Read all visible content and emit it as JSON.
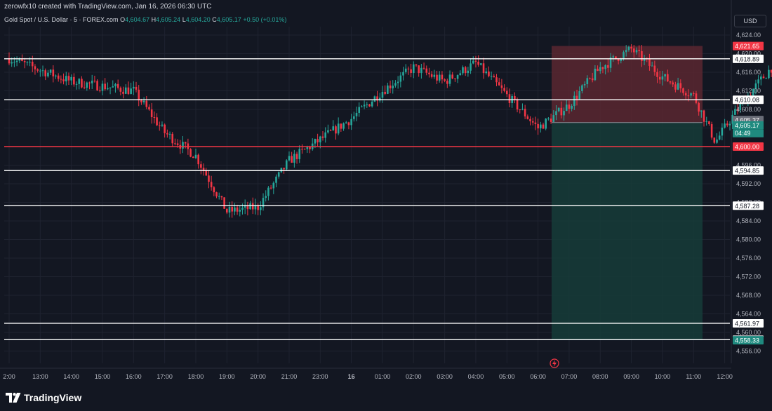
{
  "header": {
    "credit": "zerowfx10 created with TradingView.com, Jan 16, 2026 06:30 UTC",
    "symbol": "Gold Spot / U.S. Dollar · 5 · FOREX.com",
    "open_label": "O",
    "open": "4,604.67",
    "high_label": "H",
    "high": "4,605.24",
    "low_label": "L",
    "low": "4,604.20",
    "close_label": "C",
    "close": "4,605.17",
    "change": "+0.50 (+0.01%)"
  },
  "currency_button": "USD",
  "footer": {
    "brand": "TradingView"
  },
  "colors": {
    "background": "#131722",
    "up": "#26a69a",
    "down": "#f23645",
    "line": "#ffffff",
    "support_line": "#f23645",
    "stop_zone": "#5b2730",
    "target_zone": "#163c38"
  },
  "chart_data": {
    "type": "candlestick",
    "instrument": "Gold Spot / U.S. Dollar",
    "timeframe": "5",
    "source": "FOREX.com",
    "x_ticks": [
      "2:00",
      "13:00",
      "14:00",
      "15:00",
      "16:00",
      "17:00",
      "18:00",
      "19:00",
      "20:00",
      "21:00",
      "23:00",
      "16",
      "01:00",
      "02:00",
      "03:00",
      "04:00",
      "05:00",
      "06:00",
      "07:00",
      "08:00",
      "09:00",
      "10:00",
      "11:00",
      "12:00"
    ],
    "y_ticks": [
      "4,624.00",
      "4,620.00",
      "4,616.00",
      "4,612.00",
      "4,608.00",
      "4,596.00",
      "4,592.00",
      "4,588.00",
      "4,584.00",
      "4,580.00",
      "4,576.00",
      "4,572.00",
      "4,568.00",
      "4,564.00",
      "4,560.00",
      "4,556.00"
    ],
    "y_range": [
      4554,
      4628
    ],
    "horizontal_levels": [
      {
        "value": 4618.89,
        "label": "4,618.89",
        "color": "#ffffff"
      },
      {
        "value": 4610.08,
        "label": "4,610.08",
        "color": "#ffffff"
      },
      {
        "value": 4600.0,
        "label": "4,600.00",
        "color": "#f23645"
      },
      {
        "value": 4594.85,
        "label": "4,594.85",
        "color": "#ffffff"
      },
      {
        "value": 4587.28,
        "label": "4,587.28",
        "color": "#ffffff"
      },
      {
        "value": 4561.97,
        "label": "4,561.97",
        "color": "#ffffff"
      },
      {
        "value": 4558.44,
        "label": "4,558.44",
        "color": "#ffffff"
      }
    ],
    "position": {
      "type": "short",
      "entry": 4605.17,
      "stop": 4621.65,
      "stop_label": "4,621.65",
      "target": 4558.33,
      "target_label": "4,558.33"
    },
    "price_markers": [
      {
        "value": 4605.37,
        "label": "4,605.37",
        "kind": "bid"
      },
      {
        "value": 4605.17,
        "label": "4,605.17",
        "kind": "last",
        "countdown": "04:49"
      }
    ],
    "anchors": [
      {
        "t": 0,
        "v": 4619
      },
      {
        "t": 2,
        "v": 4614
      },
      {
        "t": 4,
        "v": 4612
      },
      {
        "t": 5,
        "v": 4603
      },
      {
        "t": 6,
        "v": 4598
      },
      {
        "t": 7,
        "v": 4586
      },
      {
        "t": 8,
        "v": 4587
      },
      {
        "t": 9,
        "v": 4597
      },
      {
        "t": 11,
        "v": 4606
      },
      {
        "t": 12,
        "v": 4612
      },
      {
        "t": 13,
        "v": 4617
      },
      {
        "t": 14,
        "v": 4614
      },
      {
        "t": 15,
        "v": 4618
      },
      {
        "t": 16,
        "v": 4611
      },
      {
        "t": 17,
        "v": 4604
      },
      {
        "t": 18,
        "v": 4609
      },
      {
        "t": 19,
        "v": 4617
      },
      {
        "t": 20,
        "v": 4621
      },
      {
        "t": 21,
        "v": 4615
      },
      {
        "t": 22,
        "v": 4611
      },
      {
        "t": 22.7,
        "v": 4601
      },
      {
        "t": 23.5,
        "v": 4609
      },
      {
        "t": 24.5,
        "v": 4617
      },
      {
        "t": 25.2,
        "v": 4619
      },
      {
        "t": 26,
        "v": 4615
      },
      {
        "t": 27,
        "v": 4609
      },
      {
        "t": 28,
        "v": 4608
      },
      {
        "t": 29,
        "v": 4604
      },
      {
        "t": 30,
        "v": 4600
      },
      {
        "t": 31,
        "v": 4603
      },
      {
        "t": 32,
        "v": 4601
      },
      {
        "t": 33,
        "v": 4602
      },
      {
        "t": 34,
        "v": 4598
      },
      {
        "t": 35,
        "v": 4595
      },
      {
        "t": 36,
        "v": 4597
      },
      {
        "t": 37,
        "v": 4595
      },
      {
        "t": 38,
        "v": 4597
      },
      {
        "t": 39,
        "v": 4598
      },
      {
        "t": 40,
        "v": 4600
      },
      {
        "t": 41,
        "v": 4597
      },
      {
        "t": 42,
        "v": 4601
      },
      {
        "t": 42.5,
        "v": 4611
      },
      {
        "t": 43,
        "v": 4609
      },
      {
        "t": 43.4,
        "v": 4605.17
      }
    ],
    "candles_per_hour": 12
  }
}
